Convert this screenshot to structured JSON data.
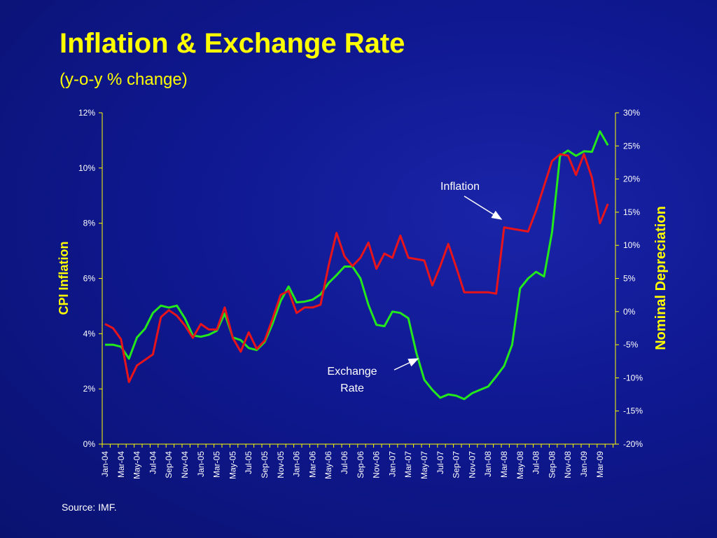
{
  "slide": {
    "title": "Inflation & Exchange Rate",
    "subtitle": "(y-o-y % change)",
    "source": "Source: IMF."
  },
  "colors": {
    "inflation": "#e8141b",
    "exchange": "#22e81c",
    "axis": "#ffff00",
    "tick_text": "#ffffff",
    "axis_title": "#ffff00"
  },
  "chart_data": {
    "type": "line",
    "title": "Inflation & Exchange Rate",
    "subtitle": "(y-o-y % change)",
    "ylabel_left": "CPI Inflation",
    "ylabel_right": "Nominal Depreciation",
    "ylim_left": [
      0,
      12
    ],
    "ylim_right": [
      -20,
      30
    ],
    "yticks_left": [
      "0%",
      "2%",
      "4%",
      "6%",
      "8%",
      "10%",
      "12%"
    ],
    "yticks_right": [
      "-20%",
      "-15%",
      "-10%",
      "-5%",
      "0%",
      "5%",
      "10%",
      "15%",
      "20%",
      "25%",
      "30%"
    ],
    "x_tick_labels": [
      "Jan-04",
      "Mar-04",
      "May-04",
      "Jul-04",
      "Sep-04",
      "Nov-04",
      "Jan-05",
      "Mar-05",
      "May-05",
      "Jul-05",
      "Sep-05",
      "Nov-05",
      "Jan-06",
      "Mar-06",
      "May-06",
      "Jul-06",
      "Sep-06",
      "Nov-06",
      "Jan-07",
      "Mar-07",
      "May-07",
      "Jul-07",
      "Sep-07",
      "Nov-07",
      "Jan-08",
      "Mar-08",
      "May-08",
      "Jul-08",
      "Sep-08",
      "Nov-08",
      "Jan-09",
      "Mar-09"
    ],
    "series": [
      {
        "name": "Inflation",
        "axis": "left",
        "values": [
          4.35,
          4.2,
          3.8,
          2.25,
          2.85,
          3.05,
          3.25,
          4.6,
          4.85,
          4.65,
          4.3,
          3.85,
          4.35,
          4.15,
          4.15,
          4.95,
          3.85,
          3.35,
          4.05,
          3.45,
          3.75,
          4.55,
          5.4,
          5.55,
          4.75,
          4.95,
          4.95,
          5.05,
          6.45,
          7.65,
          6.8,
          6.45,
          6.75,
          7.3,
          6.35,
          6.9,
          6.75,
          7.55,
          6.75,
          6.7,
          6.65,
          5.75,
          6.45,
          7.25,
          6.4,
          5.5,
          5.5,
          5.5,
          5.5,
          5.45,
          7.85,
          7.8,
          7.75,
          7.7,
          8.45,
          9.35,
          10.25,
          10.5,
          10.45,
          9.75,
          10.5,
          9.65,
          8.0,
          8.7
        ]
      },
      {
        "name": "Exchange Rate",
        "axis": "right",
        "values": [
          -5.0,
          -5.0,
          -5.3,
          -7.1,
          -3.9,
          -2.6,
          -0.2,
          0.9,
          0.6,
          0.9,
          -1.0,
          -3.6,
          -3.8,
          -3.5,
          -2.9,
          -0.3,
          -3.9,
          -4.3,
          -5.5,
          -5.8,
          -4.6,
          -1.8,
          1.6,
          3.8,
          1.4,
          1.5,
          1.8,
          2.6,
          4.3,
          5.5,
          6.8,
          6.8,
          5.0,
          1.0,
          -2.0,
          -2.2,
          0.0,
          -0.2,
          -1.0,
          -6.2,
          -10.3,
          -11.8,
          -13.0,
          -12.5,
          -12.7,
          -13.2,
          -12.3,
          -11.8,
          -11.3,
          -9.8,
          -8.2,
          -5.0,
          3.5,
          5.0,
          6.0,
          5.3,
          12.0,
          23.5,
          24.3,
          23.5,
          24.2,
          24.1,
          27.2,
          25.1
        ]
      }
    ],
    "annotations": [
      {
        "text": "Inflation",
        "target_series": "Inflation",
        "target_index": 49
      },
      {
        "text_lines": [
          "Exchange",
          "Rate"
        ],
        "target_series": "Exchange Rate",
        "target_index": 39
      }
    ],
    "grid": false,
    "legend": "none"
  }
}
